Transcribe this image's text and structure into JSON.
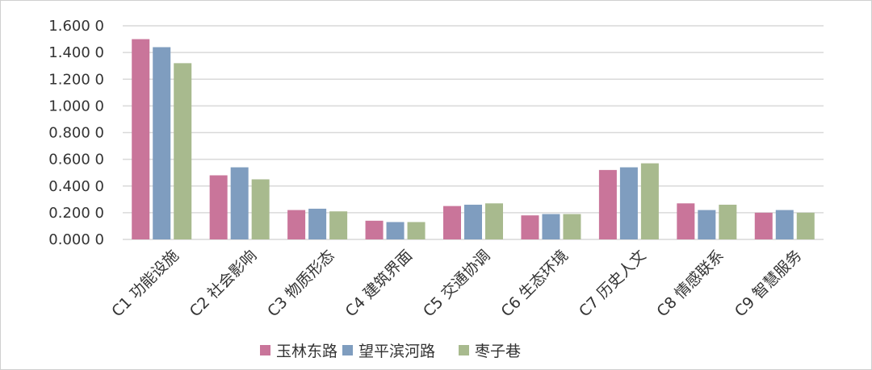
{
  "chart_data": {
    "type": "bar",
    "categories": [
      "C1 功能设施",
      "C2 社会影响",
      "C3 物质形态",
      "C4 建筑界面",
      "C5 交通协调",
      "C6 生态环境",
      "C7 历史人文",
      "C8 情感联系",
      "C9 智慧服务"
    ],
    "series": [
      {
        "name": "玉林东路",
        "color": "#c9759a",
        "values": [
          1.5,
          0.48,
          0.22,
          0.14,
          0.25,
          0.18,
          0.52,
          0.27,
          0.2
        ]
      },
      {
        "name": "望平滨河路",
        "color": "#7f9dbf",
        "values": [
          1.44,
          0.54,
          0.23,
          0.13,
          0.26,
          0.19,
          0.54,
          0.22,
          0.22
        ]
      },
      {
        "name": "枣子巷",
        "color": "#a8ba8e",
        "values": [
          1.32,
          0.45,
          0.21,
          0.13,
          0.27,
          0.19,
          0.57,
          0.26,
          0.2
        ]
      }
    ],
    "ylim": [
      0,
      1.6
    ],
    "yticks": [
      0,
      0.2,
      0.4,
      0.6,
      0.8,
      1.0,
      1.2,
      1.4,
      1.6
    ],
    "ytick_labels": [
      "0.000 0",
      "0.200 0",
      "0.400 0",
      "0.600 0",
      "0.800 0",
      "1.000 0",
      "1.200 0",
      "1.400 0",
      "1.600 0"
    ],
    "grid": true,
    "legend": "bottom-center"
  }
}
